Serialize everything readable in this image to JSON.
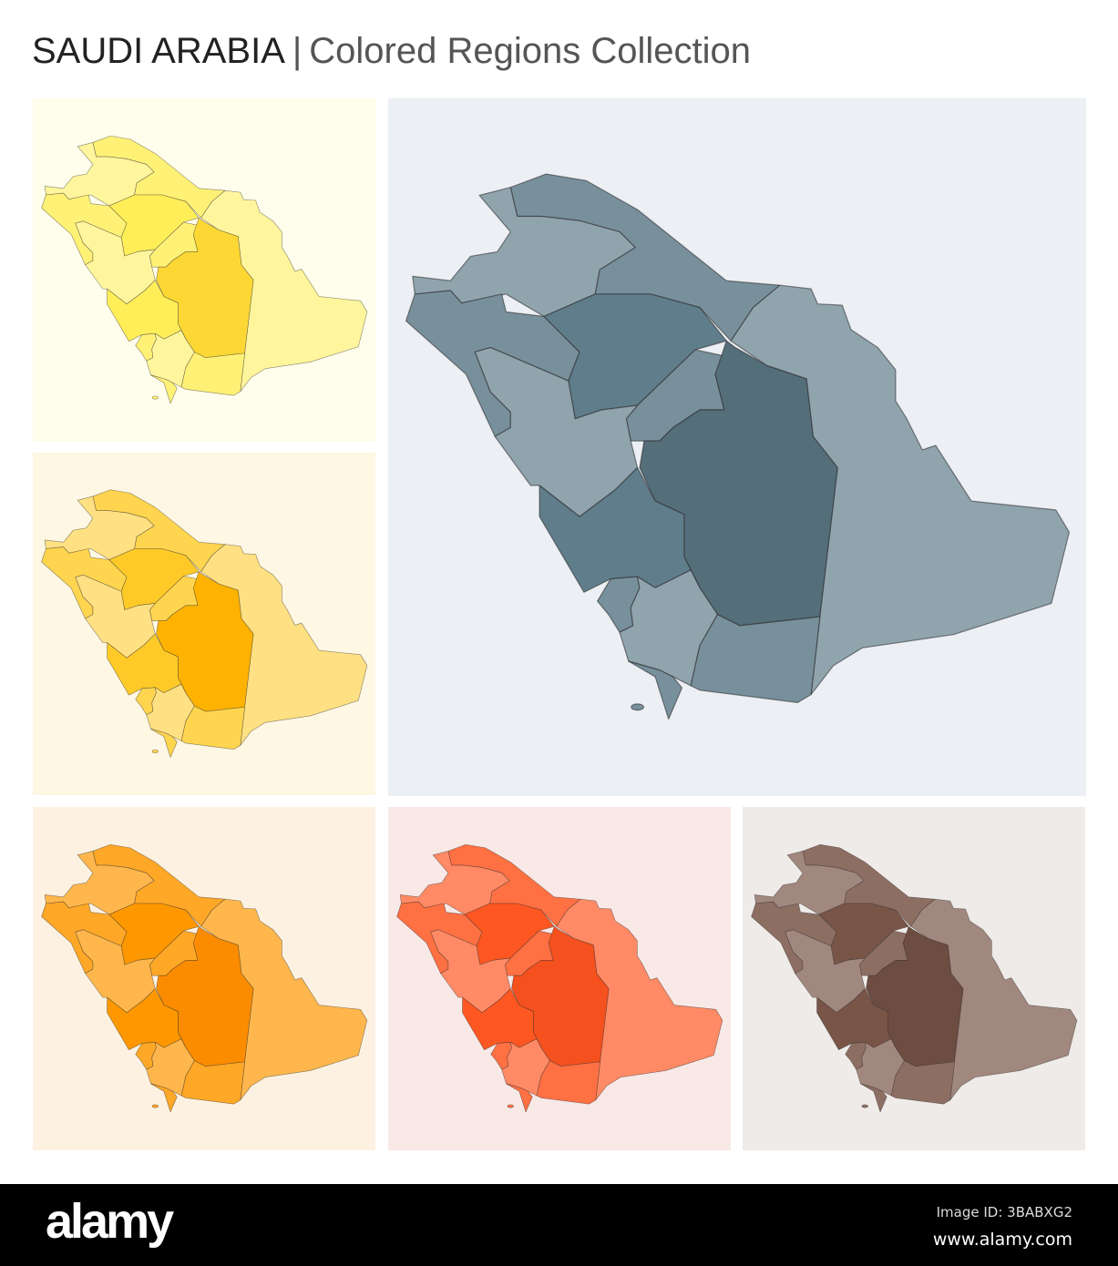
{
  "header": {
    "country": "SAUDI ARABIA",
    "separator": "|",
    "subtitle": "Colored Regions Collection"
  },
  "panels": [
    {
      "name": "yellow",
      "background": "#fffdeb",
      "colors": [
        "#fff59d",
        "#fff176",
        "#ffee58",
        "#fdd835"
      ]
    },
    {
      "name": "blue-grey",
      "background": "#eceff3",
      "colors": [
        "#90a4ae",
        "#78909c",
        "#607d8b",
        "#546e7a"
      ]
    },
    {
      "name": "amber",
      "background": "#fdf7e3",
      "colors": [
        "#ffe082",
        "#ffd54f",
        "#ffca28",
        "#ffb300"
      ]
    },
    {
      "name": "orange",
      "background": "#fdf2e1",
      "colors": [
        "#ffb74d",
        "#ffa726",
        "#ff9800",
        "#fb8c00"
      ]
    },
    {
      "name": "deep-orange",
      "background": "#f8e9e7",
      "colors": [
        "#ff8a65",
        "#ff7043",
        "#ff5722",
        "#f4511e"
      ]
    },
    {
      "name": "brown",
      "background": "#efebe8",
      "colors": [
        "#a1887f",
        "#8d6e63",
        "#795548",
        "#6d4c41"
      ]
    }
  ],
  "footer": {
    "logo": "alamy",
    "image_id": "Image ID: 3BABXG2",
    "url": "www.alamy.com"
  }
}
